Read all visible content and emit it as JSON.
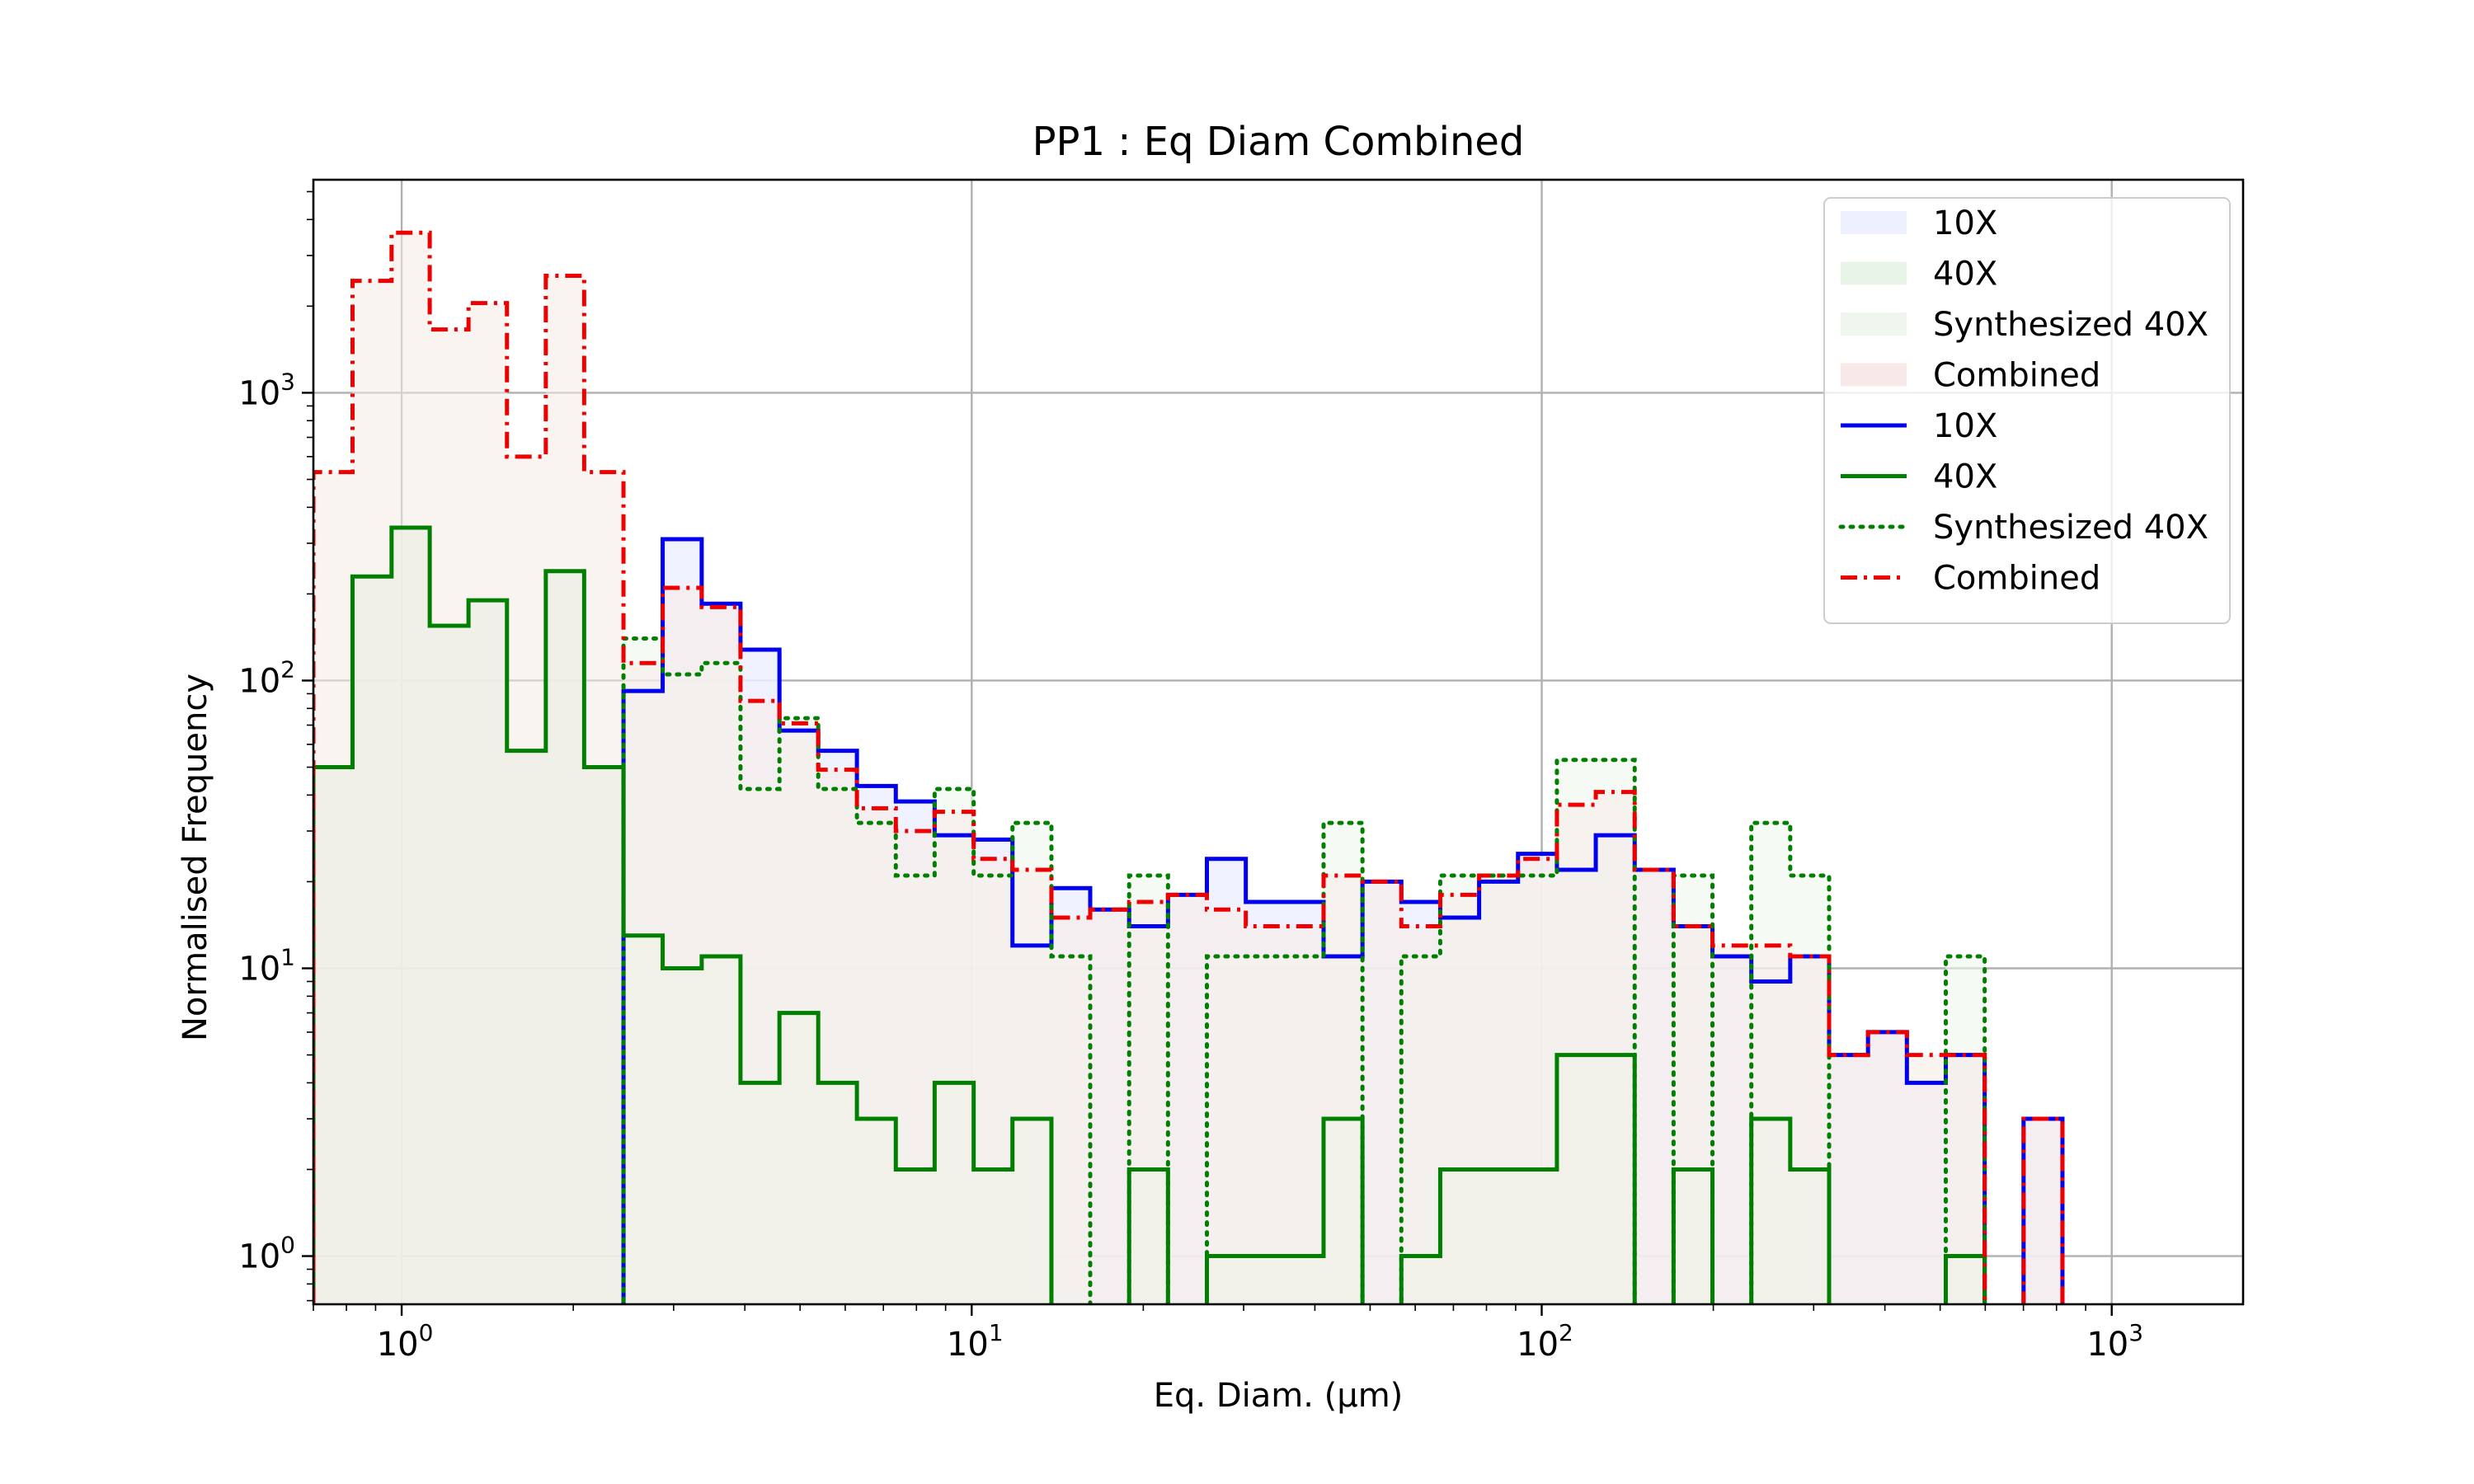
{
  "chart_data": {
    "type": "histogram",
    "title": "PP1 : Eq Diam Combined",
    "xlabel": "Eq. Diam. (µm)",
    "ylabel": "Normalised Frequency",
    "x_scale": "log",
    "y_scale": "log",
    "xlim": [
      0.7,
      1700
    ],
    "ylim": [
      0.68,
      5500
    ],
    "grid": true,
    "legend_position": "top-right",
    "x_ticks": [
      {
        "value": 1,
        "base": "10",
        "exp": "0"
      },
      {
        "value": 10,
        "base": "10",
        "exp": "1"
      },
      {
        "value": 100,
        "base": "10",
        "exp": "2"
      },
      {
        "value": 1000,
        "base": "10",
        "exp": "3"
      }
    ],
    "y_ticks": [
      {
        "value": 1,
        "base": "10",
        "exp": "0"
      },
      {
        "value": 10,
        "base": "10",
        "exp": "1"
      },
      {
        "value": 100,
        "base": "10",
        "exp": "2"
      },
      {
        "value": 1000,
        "base": "10",
        "exp": "3"
      }
    ],
    "bin_edges": [
      0.7,
      0.82,
      0.96,
      1.12,
      1.31,
      1.53,
      1.79,
      2.09,
      2.45,
      2.87,
      3.36,
      3.93,
      4.6,
      5.38,
      6.29,
      7.36,
      8.61,
      10.08,
      11.79,
      13.8,
      16.14,
      18.89,
      22.1,
      25.86,
      30.26,
      35.41,
      41.43,
      48.48,
      56.72,
      66.37,
      77.66,
      90.87,
      106.33,
      124.41,
      145.58,
      170.34,
      199.31,
      233.21,
      272.88,
      319.3,
      373.62,
      437.17,
      511.54,
      598.55,
      700.37,
      819.5,
      958.9
    ],
    "series": [
      {
        "name": "10X",
        "color": "#0000ee",
        "fill": "#eef0ff",
        "style": "solid",
        "values": [
          0,
          0,
          0,
          0,
          0,
          0,
          0,
          0,
          92,
          310,
          185,
          128,
          67,
          57,
          43,
          38,
          29,
          28,
          12,
          19,
          16,
          14,
          18,
          24,
          17,
          17,
          11,
          20,
          17,
          15,
          20,
          25,
          22,
          29,
          22,
          14,
          11,
          9,
          11,
          5,
          6,
          4,
          5,
          0,
          3,
          0
        ]
      },
      {
        "name": "40X",
        "color": "#007f00",
        "fill": "#e8f4e8",
        "style": "solid",
        "values": [
          50,
          230,
          340,
          155,
          190,
          57,
          240,
          50,
          13,
          10,
          11,
          4,
          7,
          4,
          3,
          2,
          4,
          2,
          3,
          0,
          0,
          2,
          0,
          1,
          1,
          1,
          3,
          0,
          1,
          2,
          2,
          2,
          5,
          5,
          0,
          2,
          0,
          3,
          2,
          0,
          0,
          0,
          1,
          0,
          0,
          0
        ]
      },
      {
        "name": "Synthesized 40X",
        "color": "#007f00",
        "fill": "#eef6ee",
        "style": "dotted",
        "values": [
          0,
          0,
          0,
          0,
          0,
          0,
          0,
          0,
          140,
          105,
          115,
          42,
          74,
          42,
          32,
          21,
          42,
          21,
          32,
          11,
          0,
          21,
          0,
          11,
          11,
          11,
          32,
          0,
          11,
          21,
          21,
          21,
          53,
          53,
          0,
          21,
          0,
          32,
          21,
          0,
          0,
          0,
          11,
          0,
          0,
          0
        ]
      },
      {
        "name": "Combined",
        "color": "#ee0000",
        "fill": "#f5ebe6",
        "style": "dashdot",
        "values": [
          530,
          2450,
          3600,
          1660,
          2050,
          600,
          2550,
          530,
          115,
          210,
          180,
          85,
          71,
          49,
          36,
          30,
          35,
          24,
          22,
          15,
          16,
          17,
          18,
          16,
          14,
          14,
          21,
          20,
          14,
          18,
          21,
          24,
          37,
          41,
          22,
          14,
          12,
          12,
          11,
          5,
          6,
          5,
          5,
          0,
          3,
          0
        ]
      }
    ],
    "legend": [
      {
        "label": "10X",
        "kind": "patch",
        "color": "#eef0ff"
      },
      {
        "label": "40X",
        "kind": "patch",
        "color": "#e8f4e8"
      },
      {
        "label": "Synthesized 40X",
        "kind": "patch",
        "color": "#eef6ee"
      },
      {
        "label": "Combined",
        "kind": "patch",
        "color": "#f8e8e8"
      },
      {
        "label": "10X",
        "kind": "line",
        "color": "#0000ee",
        "style": "solid"
      },
      {
        "label": "40X",
        "kind": "line",
        "color": "#007f00",
        "style": "solid"
      },
      {
        "label": "Synthesized 40X",
        "kind": "line",
        "color": "#007f00",
        "style": "dotted"
      },
      {
        "label": "Combined",
        "kind": "line",
        "color": "#ee0000",
        "style": "dashdot"
      }
    ]
  }
}
